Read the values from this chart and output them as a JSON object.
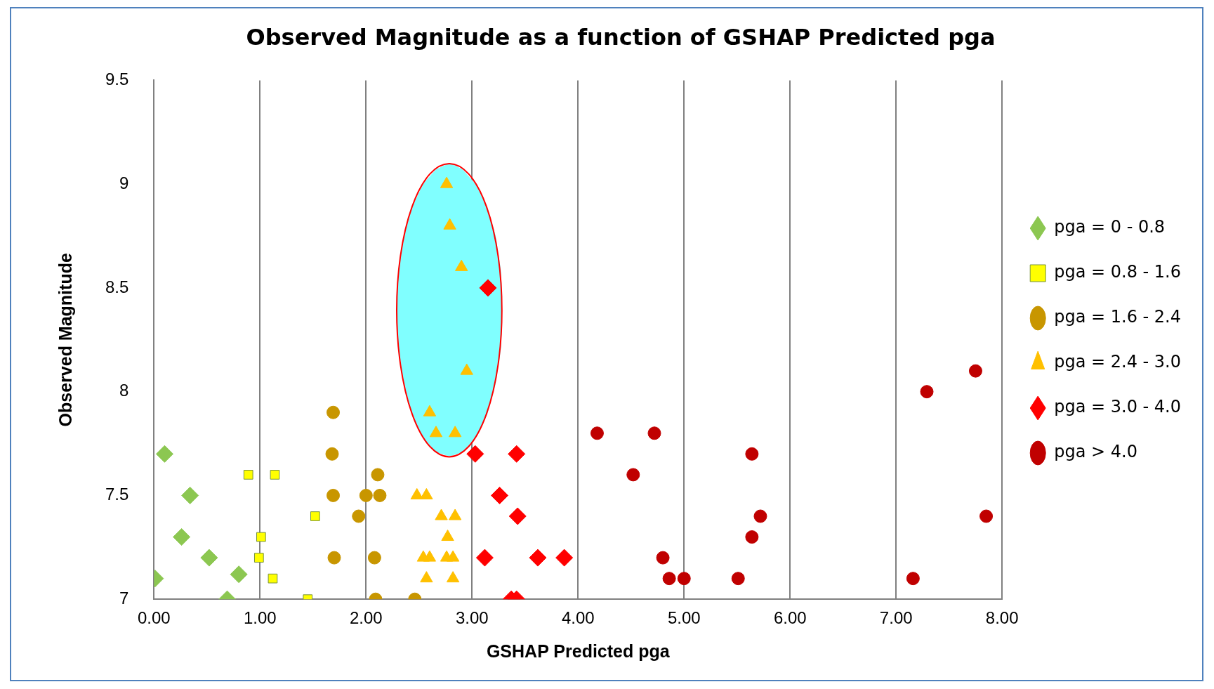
{
  "chart_data": {
    "type": "scatter",
    "title": "Observed Magnitude as a function of GSHAP Predicted pga",
    "xlabel": "GSHAP Predicted pga",
    "ylabel": "Observed Magnitude",
    "xlim": [
      0,
      8
    ],
    "xticks": [
      {
        "value": 0,
        "label": "0.00"
      },
      {
        "value": 1,
        "label": "1.00"
      },
      {
        "value": 2,
        "label": "2.00"
      },
      {
        "value": 3,
        "label": "3.00"
      },
      {
        "value": 4,
        "label": "4.00"
      },
      {
        "value": 5,
        "label": "5.00"
      },
      {
        "value": 6,
        "label": "6.00"
      },
      {
        "value": 7,
        "label": "7.00"
      },
      {
        "value": 8,
        "label": "8.00"
      }
    ],
    "ylim": [
      7,
      9.5
    ],
    "yticks": [
      7,
      7.5,
      8,
      8.5,
      9,
      9.5
    ],
    "grid": "x",
    "legend": "right",
    "series": [
      {
        "type": "area",
        "color": "#80ffff",
        "x": [
          3.28,
          3.27,
          3.22,
          3.14,
          3.03,
          2.91,
          2.79,
          2.66,
          2.54,
          2.44,
          2.36,
          2.31,
          2.29,
          2.31,
          2.36,
          2.44,
          2.54,
          2.66,
          2.79,
          2.91,
          3.03,
          3.14,
          3.22,
          3.27,
          3.28
        ],
        "values": [
          8.39,
          8.58,
          8.75,
          8.89,
          9.0,
          9.07,
          9.1,
          9.07,
          9.0,
          8.89,
          8.75,
          8.58,
          8.39,
          8.21,
          8.04,
          7.89,
          7.78,
          7.71,
          7.69,
          7.71,
          7.78,
          7.89,
          8.04,
          8.21,
          8.39
        ]
      },
      {
        "name": "pga = 0 - 0.8",
        "color": "#8cc751",
        "marker": "diamond",
        "x": [
          0.01,
          0.1,
          0.34,
          0.26,
          0.52,
          0.8,
          0.69
        ],
        "values": [
          7.1,
          7.7,
          7.5,
          7.3,
          7.2,
          7.12,
          7.0
        ]
      },
      {
        "name": "pga = 0.8 - 1.6",
        "color": "#ffff00",
        "marker": "square",
        "x": [
          0.89,
          1.14,
          1.52,
          1.01,
          0.99,
          1.12,
          1.45
        ],
        "values": [
          7.6,
          7.6,
          7.4,
          7.3,
          7.2,
          7.1,
          7.0
        ]
      },
      {
        "name": "pga = 1.6 - 2.4",
        "color": "#c89600",
        "marker": "circle",
        "x": [
          1.69,
          1.68,
          2.11,
          1.69,
          2.0,
          2.13,
          1.93,
          1.7,
          2.08,
          2.09,
          2.46
        ],
        "values": [
          7.9,
          7.7,
          7.6,
          7.5,
          7.5,
          7.5,
          7.4,
          7.2,
          7.2,
          7.0,
          7.0
        ]
      },
      {
        "name": "pga = 2.4 - 3.0",
        "color": "#ffc000",
        "marker": "triangle",
        "x": [
          2.76,
          2.79,
          2.9,
          2.95,
          2.6,
          2.66,
          2.84,
          2.48,
          2.57,
          2.71,
          2.84,
          2.77,
          2.54,
          2.6,
          2.76,
          2.82,
          2.57,
          2.82
        ],
        "values": [
          9.0,
          8.8,
          8.6,
          8.1,
          7.9,
          7.8,
          7.8,
          7.5,
          7.5,
          7.4,
          7.4,
          7.3,
          7.2,
          7.2,
          7.2,
          7.2,
          7.1,
          7.1
        ]
      },
      {
        "name": "pga = 3.0 - 4.0",
        "color": "#ff0000",
        "marker": "diamond",
        "x": [
          3.15,
          3.03,
          3.42,
          3.26,
          3.43,
          3.12,
          3.62,
          3.87,
          3.37,
          3.42
        ],
        "values": [
          8.5,
          7.7,
          7.7,
          7.5,
          7.4,
          7.2,
          7.2,
          7.2,
          7.0,
          7.0
        ]
      },
      {
        "name": "pga > 4.0",
        "color": "#c00000",
        "marker": "circle",
        "x": [
          4.18,
          4.72,
          4.52,
          5.64,
          5.72,
          5.64,
          4.8,
          4.86,
          5.0,
          5.51,
          7.29,
          7.75,
          7.85,
          7.16
        ],
        "values": [
          7.8,
          7.8,
          7.6,
          7.7,
          7.4,
          7.3,
          7.2,
          7.1,
          7.1,
          7.1,
          8.0,
          8.1,
          7.4,
          7.1
        ]
      }
    ]
  }
}
